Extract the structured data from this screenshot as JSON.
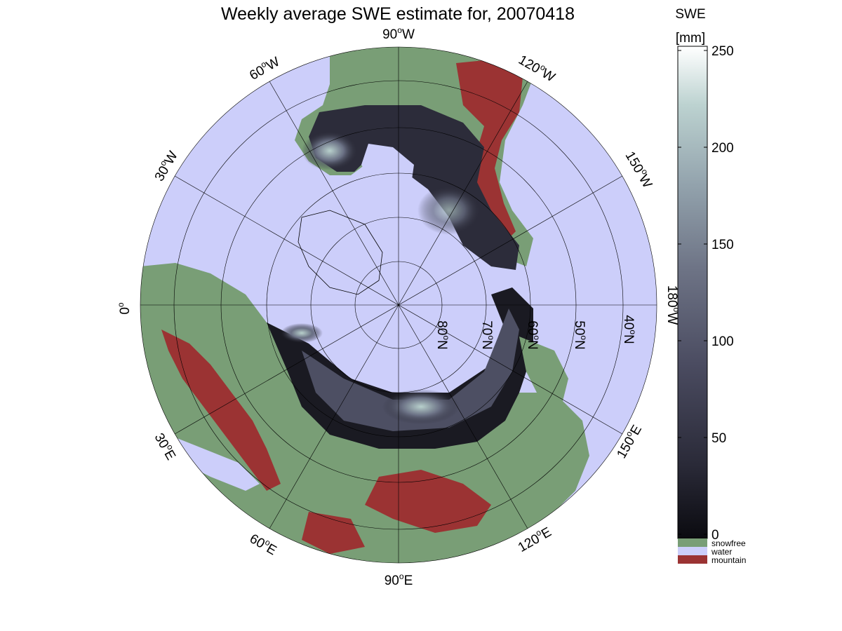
{
  "title": "Weekly average SWE estimate for, 20070418",
  "colorbar": {
    "label_line1": "SWE",
    "label_line2": "[mm]",
    "ticks": [
      "0",
      "50",
      "100",
      "150",
      "200",
      "250"
    ],
    "tick_values": [
      0,
      50,
      100,
      150,
      200,
      250
    ],
    "range": [
      0,
      250
    ],
    "gradient_colors": [
      "#0b0b10",
      "#2a2a38",
      "#4a4b60",
      "#6e7486",
      "#93a3ad",
      "#bcd2d0",
      "#ffffff"
    ],
    "categories": [
      {
        "label": "snowfree",
        "color": "#799e76"
      },
      {
        "label": "water",
        "color": "#cccefa"
      },
      {
        "label": "mountain",
        "color": "#9b3333"
      }
    ]
  },
  "map": {
    "projection": "north-polar-stereographic",
    "colors": {
      "water": "#cccefa",
      "land": "#799e76",
      "mountain": "#9b3333",
      "snow_low": "#111118",
      "snow_mid": "#4a4b60",
      "snow_high": "#a8c3c2",
      "snow_max": "#ffffff"
    },
    "longitude_labels": [
      {
        "base": "90",
        "dir": "W"
      },
      {
        "base": "60",
        "dir": "W"
      },
      {
        "base": "30",
        "dir": "W"
      },
      {
        "base": "0",
        "dir": ""
      },
      {
        "base": "120",
        "dir": "W"
      },
      {
        "base": "150",
        "dir": "W"
      },
      {
        "base": "180",
        "dir": "W"
      },
      {
        "base": "150",
        "dir": "E"
      },
      {
        "base": "120",
        "dir": "E"
      },
      {
        "base": "90",
        "dir": "E"
      },
      {
        "base": "60",
        "dir": "E"
      },
      {
        "base": "30",
        "dir": "E"
      }
    ],
    "latitude_labels": [
      {
        "base": "80",
        "dir": "N"
      },
      {
        "base": "70",
        "dir": "N"
      },
      {
        "base": "60",
        "dir": "N"
      },
      {
        "base": "50",
        "dir": "N"
      },
      {
        "base": "40",
        "dir": "N"
      }
    ]
  }
}
